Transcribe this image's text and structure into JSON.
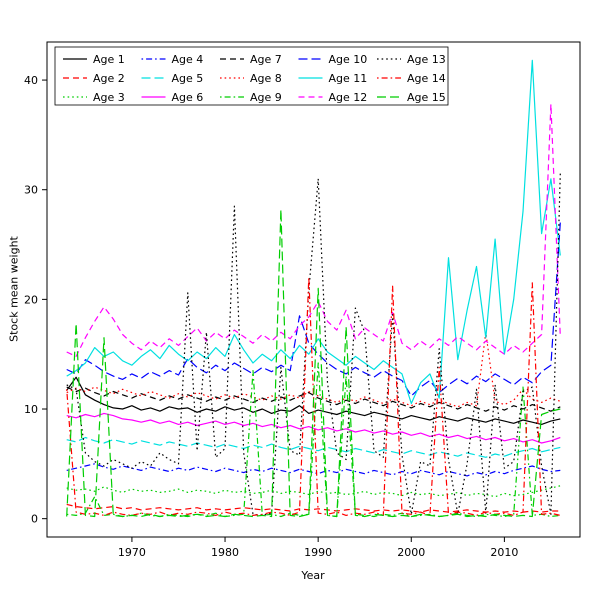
{
  "chart_data": {
    "type": "line",
    "title": "",
    "xlabel": "Year",
    "ylabel": "Stock mean weight",
    "xlim": [
      1963,
      2016
    ],
    "ylim": [
      0,
      41.8
    ],
    "xticks": [
      1970,
      1980,
      1990,
      2000,
      2010
    ],
    "yticks": [
      0,
      10,
      20,
      30,
      40
    ],
    "grid": false,
    "legend_position": "top-left",
    "legend_columns": 5,
    "legend_rows": 3,
    "background_color": "#ffffff",
    "axis_color": "#000000",
    "x": [
      1963,
      1964,
      1965,
      1966,
      1967,
      1968,
      1969,
      1970,
      1971,
      1972,
      1973,
      1974,
      1975,
      1976,
      1977,
      1978,
      1979,
      1980,
      1981,
      1982,
      1983,
      1984,
      1985,
      1986,
      1987,
      1988,
      1989,
      1990,
      1991,
      1992,
      1993,
      1994,
      1995,
      1996,
      1997,
      1998,
      1999,
      2000,
      2001,
      2002,
      2003,
      2004,
      2005,
      2006,
      2007,
      2008,
      2009,
      2010,
      2011,
      2012,
      2013,
      2014,
      2015,
      2016
    ],
    "series": [
      {
        "name": "Age 1",
        "color": "#000000",
        "linestyle": "solid",
        "values": [
          11.7,
          12.9,
          11.3,
          10.8,
          10.4,
          10.1,
          10.0,
          10.3,
          9.9,
          10.1,
          9.8,
          10.2,
          10.0,
          10.1,
          9.7,
          10.0,
          9.8,
          10.2,
          9.9,
          10.1,
          9.7,
          10.0,
          9.6,
          9.9,
          9.8,
          10.3,
          9.6,
          9.9,
          9.7,
          9.5,
          9.8,
          9.6,
          9.4,
          9.7,
          9.5,
          9.3,
          9.1,
          9.4,
          9.2,
          9.0,
          9.3,
          9.1,
          8.9,
          9.2,
          9.0,
          8.8,
          9.1,
          8.9,
          8.7,
          9.0,
          8.8,
          8.6,
          8.9,
          9.1
        ]
      },
      {
        "name": "Age 2",
        "color": "#ff0000",
        "linestyle": "dashed",
        "values": [
          1.3,
          1.1,
          1.0,
          0.9,
          1.0,
          1.1,
          0.9,
          1.0,
          0.8,
          0.9,
          1.0,
          0.9,
          0.8,
          0.9,
          1.0,
          0.8,
          0.9,
          0.8,
          0.9,
          1.0,
          0.9,
          0.8,
          0.9,
          0.8,
          0.7,
          0.9,
          0.8,
          0.9,
          0.8,
          0.7,
          0.8,
          0.9,
          0.8,
          0.7,
          0.8,
          0.7,
          0.8,
          0.7,
          0.6,
          0.8,
          0.7,
          0.6,
          0.7,
          0.8,
          0.7,
          0.6,
          0.7,
          0.6,
          0.7,
          0.6,
          0.7,
          0.6,
          0.7,
          0.7
        ]
      },
      {
        "name": "Age 3",
        "color": "#00cd00",
        "linestyle": "dotted",
        "values": [
          2.8,
          2.6,
          2.7,
          2.5,
          2.9,
          2.6,
          2.4,
          2.7,
          2.5,
          2.6,
          2.4,
          2.5,
          2.7,
          2.4,
          2.6,
          2.5,
          2.3,
          2.6,
          2.4,
          2.5,
          2.3,
          2.4,
          2.6,
          2.3,
          2.5,
          2.4,
          2.2,
          2.5,
          2.3,
          2.4,
          2.2,
          2.3,
          2.5,
          2.2,
          2.4,
          2.3,
          2.1,
          2.4,
          2.2,
          2.3,
          2.1,
          2.2,
          2.4,
          2.1,
          2.3,
          2.2,
          2.0,
          2.3,
          2.1,
          2.2,
          2.4,
          2.6,
          2.8,
          3.0
        ]
      },
      {
        "name": "Age 4",
        "color": "#0000ff",
        "linestyle": "dashdot",
        "values": [
          4.4,
          4.6,
          4.8,
          5.0,
          4.7,
          4.5,
          4.8,
          4.6,
          4.4,
          4.7,
          4.5,
          4.3,
          4.6,
          4.4,
          4.7,
          4.5,
          4.3,
          4.6,
          4.4,
          4.2,
          4.5,
          4.3,
          4.6,
          4.4,
          4.2,
          4.5,
          4.3,
          4.1,
          4.4,
          4.2,
          4.5,
          4.3,
          4.1,
          4.4,
          4.2,
          4.0,
          4.3,
          4.1,
          4.4,
          4.2,
          4.0,
          4.3,
          4.1,
          3.9,
          4.2,
          4.0,
          4.3,
          4.1,
          4.4,
          4.6,
          4.8,
          4.5,
          4.3,
          4.4
        ]
      },
      {
        "name": "Age 5",
        "color": "#00e0e0",
        "linestyle": "longdash",
        "values": [
          7.2,
          7.0,
          7.4,
          7.1,
          6.9,
          7.2,
          7.0,
          6.8,
          7.1,
          6.9,
          6.7,
          7.0,
          6.8,
          6.6,
          6.9,
          6.7,
          6.5,
          6.8,
          6.6,
          6.4,
          6.7,
          6.5,
          6.8,
          6.5,
          6.3,
          6.6,
          6.4,
          6.2,
          6.5,
          6.3,
          6.1,
          6.4,
          6.2,
          6.0,
          6.3,
          6.1,
          5.9,
          6.2,
          6.0,
          5.8,
          6.1,
          5.9,
          5.7,
          6.0,
          5.8,
          5.6,
          5.9,
          5.7,
          6.0,
          6.2,
          6.4,
          6.1,
          6.3,
          6.5
        ]
      },
      {
        "name": "Age 6",
        "color": "#ff00ff",
        "linestyle": "solid",
        "values": [
          9.4,
          9.2,
          9.5,
          9.3,
          9.6,
          9.4,
          9.1,
          9.0,
          8.8,
          9.0,
          8.7,
          8.9,
          8.6,
          8.8,
          8.5,
          8.7,
          8.9,
          8.6,
          8.8,
          8.5,
          8.7,
          8.4,
          8.6,
          8.3,
          8.5,
          8.2,
          8.4,
          8.1,
          8.3,
          8.0,
          8.2,
          7.9,
          8.1,
          7.8,
          8.0,
          7.7,
          7.9,
          7.6,
          7.8,
          7.5,
          7.7,
          7.4,
          7.6,
          7.3,
          7.5,
          7.2,
          7.4,
          7.1,
          7.3,
          7.0,
          7.2,
          6.9,
          7.1,
          7.4
        ]
      },
      {
        "name": "Age 7",
        "color": "#000000",
        "linestyle": "dashed",
        "values": [
          12.0,
          11.6,
          11.9,
          11.5,
          11.2,
          11.6,
          11.3,
          11.0,
          11.4,
          11.1,
          10.8,
          11.2,
          10.9,
          11.3,
          11.0,
          10.7,
          11.1,
          10.8,
          11.2,
          10.9,
          10.6,
          11.0,
          10.7,
          11.1,
          10.8,
          11.2,
          11.5,
          11.0,
          10.7,
          10.4,
          10.8,
          10.5,
          10.9,
          10.6,
          10.3,
          10.7,
          10.4,
          10.1,
          10.5,
          10.2,
          10.6,
          10.3,
          10.0,
          10.4,
          10.1,
          9.8,
          10.2,
          9.9,
          10.3,
          10.0,
          10.4,
          10.1,
          9.8,
          10.2
        ]
      },
      {
        "name": "Age 8",
        "color": "#ff0000",
        "linestyle": "dotted",
        "values": [
          11.5,
          11.9,
          11.6,
          12.0,
          11.7,
          11.4,
          11.8,
          11.5,
          11.2,
          11.6,
          11.3,
          11.0,
          11.4,
          11.1,
          11.5,
          11.2,
          10.9,
          11.3,
          11.0,
          11.4,
          11.1,
          10.8,
          11.2,
          10.9,
          11.3,
          11.0,
          11.6,
          11.2,
          10.9,
          10.6,
          11.0,
          10.7,
          11.1,
          10.8,
          10.5,
          10.9,
          10.6,
          10.3,
          10.7,
          10.4,
          10.8,
          10.5,
          10.2,
          10.6,
          10.3,
          17.0,
          10.7,
          10.4,
          10.8,
          11.8,
          10.9,
          10.6,
          11.0,
          10.7
        ]
      },
      {
        "name": "Age 9",
        "color": "#00cd00",
        "linestyle": "dashdot",
        "values": [
          0.4,
          0.3,
          0.5,
          2.0,
          0.3,
          0.4,
          0.2,
          0.3,
          0.5,
          0.3,
          0.2,
          0.4,
          0.3,
          0.2,
          0.4,
          0.3,
          0.5,
          0.2,
          0.3,
          0.4,
          13.5,
          0.3,
          0.4,
          0.2,
          0.5,
          0.3,
          0.4,
          14.2,
          0.3,
          0.2,
          13.0,
          0.4,
          0.3,
          0.2,
          0.4,
          0.3,
          0.5,
          0.2,
          0.3,
          0.4,
          0.2,
          0.3,
          0.5,
          0.3,
          0.2,
          0.4,
          0.3,
          0.2,
          0.4,
          12.0,
          0.3,
          0.4,
          0.2,
          0.3
        ]
      },
      {
        "name": "Age 10",
        "color": "#0000ff",
        "linestyle": "longdash",
        "values": [
          13.6,
          13.2,
          14.5,
          14.0,
          13.4,
          13.0,
          12.7,
          13.2,
          12.8,
          13.4,
          13.0,
          13.5,
          13.1,
          14.6,
          13.8,
          13.3,
          14.0,
          13.5,
          14.2,
          13.7,
          13.2,
          13.8,
          13.4,
          14.0,
          13.5,
          18.5,
          16.0,
          15.0,
          14.2,
          13.6,
          13.2,
          13.8,
          13.3,
          12.9,
          13.5,
          13.0,
          12.6,
          11.2,
          12.0,
          12.6,
          11.5,
          12.2,
          12.8,
          12.3,
          13.0,
          12.5,
          13.2,
          12.7,
          12.2,
          12.9,
          12.4,
          13.4,
          14.0,
          27.0
        ]
      },
      {
        "name": "Age 11",
        "color": "#00e0e0",
        "linestyle": "solid",
        "values": [
          13.0,
          13.5,
          14.2,
          15.6,
          14.8,
          15.2,
          14.4,
          14.0,
          14.8,
          15.4,
          14.6,
          15.8,
          15.0,
          14.4,
          15.2,
          14.6,
          15.6,
          14.8,
          16.8,
          15.4,
          14.2,
          15.0,
          14.4,
          15.4,
          14.6,
          15.8,
          15.0,
          16.4,
          15.2,
          14.6,
          14.0,
          14.8,
          14.2,
          13.6,
          14.4,
          13.8,
          13.2,
          10.5,
          12.4,
          13.2,
          11.0,
          23.8,
          14.5,
          19.0,
          23.0,
          16.5,
          25.5,
          15.0,
          20.0,
          28.0,
          41.8,
          26.0,
          31.0,
          24.0
        ]
      },
      {
        "name": "Age 12",
        "color": "#ff00ff",
        "linestyle": "dashed",
        "values": [
          15.2,
          14.8,
          16.5,
          18.0,
          19.3,
          18.2,
          16.8,
          16.0,
          15.4,
          16.2,
          15.6,
          16.4,
          15.8,
          16.6,
          17.4,
          16.2,
          17.0,
          16.4,
          17.2,
          16.6,
          16.0,
          16.8,
          16.2,
          17.0,
          16.4,
          17.6,
          18.4,
          19.8,
          18.0,
          17.2,
          19.0,
          16.4,
          17.4,
          16.8,
          16.2,
          18.8,
          16.0,
          15.4,
          16.2,
          15.6,
          16.4,
          15.8,
          16.6,
          16.0,
          15.4,
          16.2,
          15.6,
          15.0,
          15.8,
          15.2,
          16.0,
          16.8,
          37.8,
          16.6
        ]
      },
      {
        "name": "Age 13",
        "color": "#000000",
        "linestyle": "dotted",
        "values": [
          12.2,
          11.8,
          6.0,
          5.2,
          4.8,
          5.4,
          5.0,
          4.6,
          5.2,
          4.8,
          6.0,
          5.4,
          5.0,
          20.6,
          6.2,
          17.0,
          5.6,
          6.4,
          28.5,
          6.0,
          0.4,
          0.3,
          0.5,
          13.8,
          6.2,
          5.8,
          20.8,
          31.0,
          12.4,
          6.0,
          5.4,
          19.2,
          17.0,
          6.2,
          5.6,
          18.6,
          5.8,
          0.4,
          5.2,
          4.8,
          15.5,
          5.4,
          0.4,
          5.0,
          11.8,
          0.5,
          12.2,
          4.6,
          5.2,
          11.6,
          12.0,
          4.8,
          0.4,
          31.5
        ]
      },
      {
        "name": "Age 14",
        "color": "#ff0000",
        "linestyle": "dashdot",
        "values": [
          11.8,
          0.6,
          0.4,
          0.5,
          0.3,
          0.6,
          0.4,
          0.3,
          0.5,
          0.4,
          0.6,
          0.3,
          0.5,
          0.4,
          0.6,
          0.5,
          0.3,
          0.6,
          0.4,
          0.5,
          0.3,
          0.4,
          0.6,
          0.5,
          0.3,
          0.6,
          22.0,
          0.5,
          0.4,
          0.6,
          0.3,
          0.5,
          0.4,
          0.6,
          0.3,
          21.2,
          0.5,
          0.4,
          0.6,
          0.3,
          13.8,
          0.4,
          0.6,
          0.5,
          0.3,
          0.6,
          0.4,
          0.5,
          0.3,
          0.6,
          21.5,
          0.4,
          0.5,
          0.3
        ]
      },
      {
        "name": "Age 15",
        "color": "#00cd00",
        "linestyle": "longdash",
        "values": [
          0.2,
          17.8,
          0.3,
          0.2,
          16.5,
          0.3,
          0.2,
          0.3,
          0.2,
          0.4,
          0.2,
          0.3,
          0.2,
          0.3,
          0.4,
          0.2,
          0.3,
          0.2,
          0.4,
          0.3,
          0.2,
          0.3,
          0.2,
          28.2,
          0.3,
          0.2,
          0.4,
          21.0,
          0.3,
          0.2,
          17.5,
          0.3,
          0.2,
          0.4,
          0.3,
          0.2,
          0.3,
          0.2,
          0.4,
          0.3,
          0.2,
          0.3,
          0.4,
          0.2,
          0.3,
          0.2,
          0.4,
          0.3,
          0.2,
          0.3,
          0.2,
          9.5,
          9.8,
          10.0
        ]
      }
    ]
  }
}
